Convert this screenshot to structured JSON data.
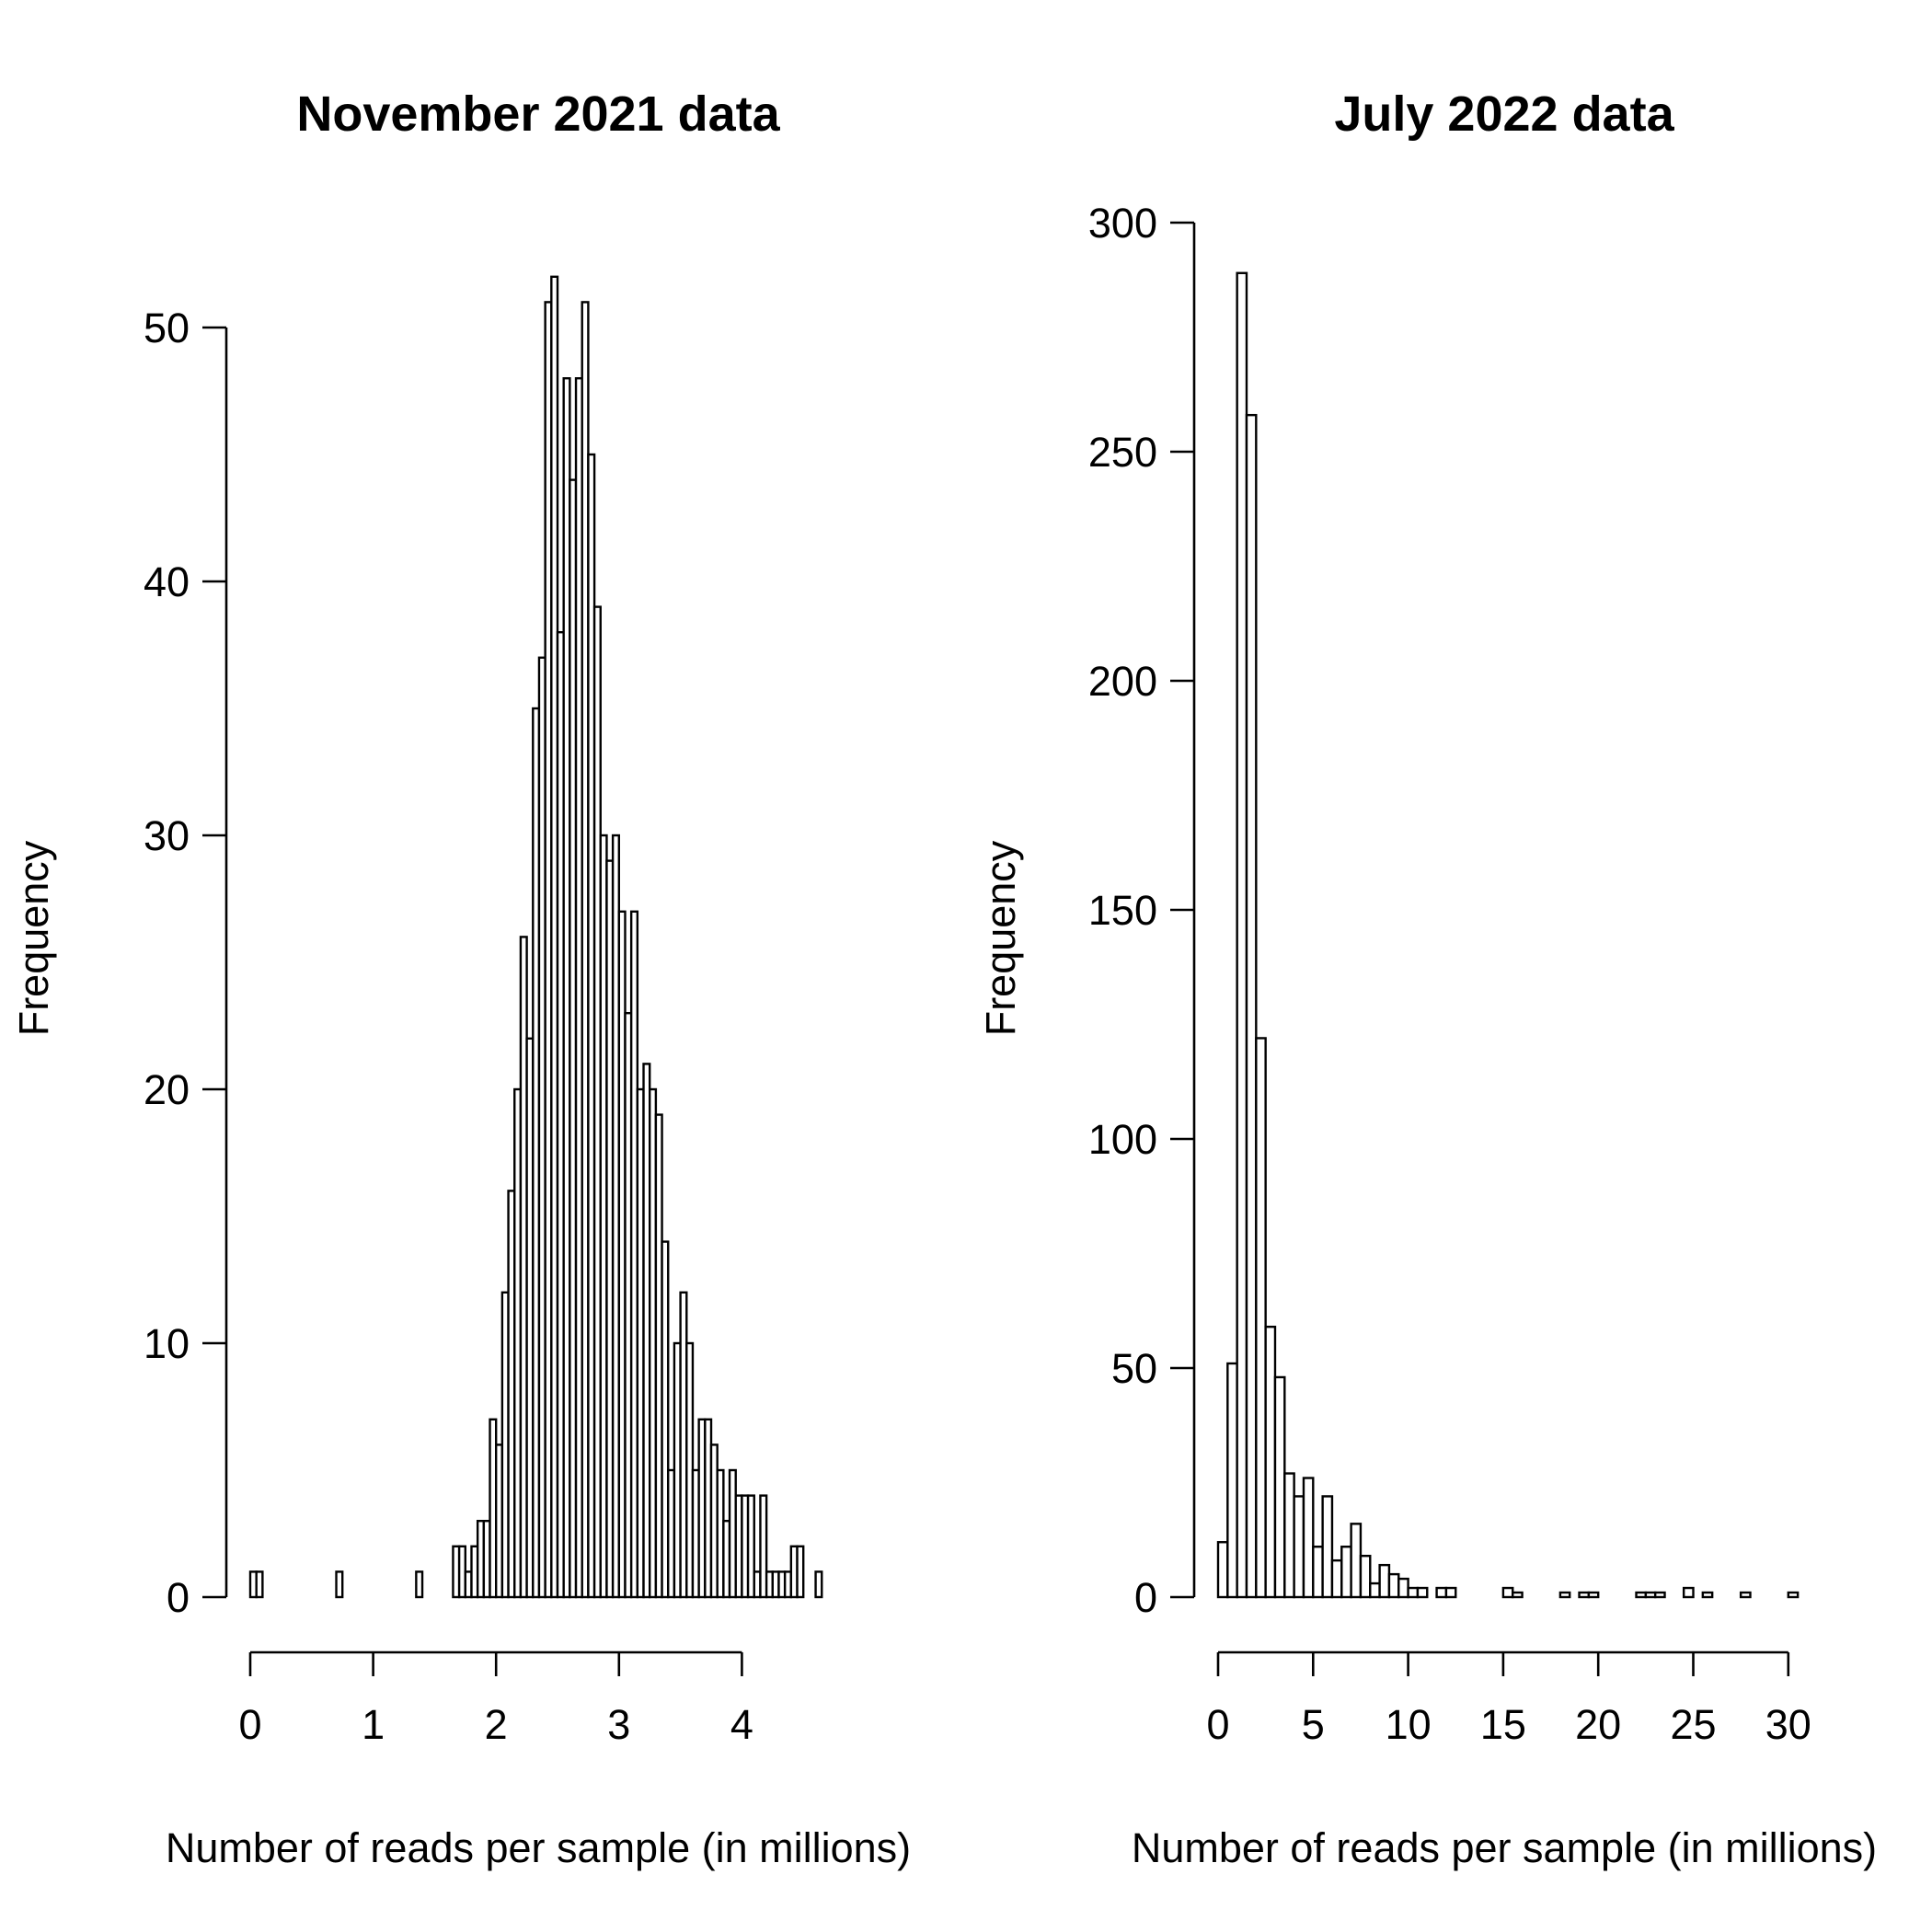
{
  "chart_data": [
    {
      "type": "bar",
      "title": "November 2021 data",
      "xlabel": "Number of reads per sample (in millions)",
      "ylabel": "Frequency",
      "xlim": [
        0,
        4.7
      ],
      "ylim": [
        0,
        50
      ],
      "bin_width": 0.05,
      "x_ticks": [
        "0",
        "1",
        "2",
        "3",
        "4"
      ],
      "y_ticks": [
        "0",
        "10",
        "20",
        "30",
        "40",
        "50"
      ],
      "grid": false,
      "bins_start": 0,
      "values": [
        1,
        1,
        0,
        0,
        0,
        0,
        0,
        0,
        0,
        0,
        0,
        0,
        0,
        0,
        1,
        0,
        0,
        0,
        0,
        0,
        0,
        0,
        0,
        0,
        0,
        0,
        0,
        1,
        0,
        0,
        0,
        0,
        0,
        2,
        2,
        1,
        2,
        3,
        3,
        7,
        6,
        12,
        16,
        20,
        26,
        22,
        35,
        37,
        51,
        52,
        38,
        48,
        44,
        48,
        51,
        45,
        39,
        30,
        29,
        30,
        27,
        23,
        27,
        20,
        21,
        20,
        19,
        14,
        5,
        10,
        12,
        10,
        5,
        7,
        7,
        6,
        5,
        3,
        5,
        4,
        4,
        4,
        1,
        4,
        1,
        1,
        1,
        1,
        2,
        2,
        0,
        0,
        1
      ]
    },
    {
      "type": "bar",
      "title": "July 2022 data",
      "xlabel": "Number of reads per sample (in millions)",
      "ylabel": "Frequency",
      "xlim": [
        0,
        30.5
      ],
      "ylim": [
        0,
        300
      ],
      "bin_width": 0.5,
      "x_ticks": [
        "0",
        "5",
        "10",
        "15",
        "20",
        "25",
        "30"
      ],
      "y_ticks": [
        "0",
        "50",
        "100",
        "150",
        "200",
        "250",
        "300"
      ],
      "grid": false,
      "bins_start": 0,
      "values": [
        12,
        51,
        289,
        258,
        122,
        59,
        48,
        27,
        22,
        26,
        11,
        22,
        8,
        11,
        16,
        9,
        3,
        7,
        5,
        4,
        2,
        2,
        0,
        2,
        2,
        0,
        0,
        0,
        0,
        0,
        2,
        1,
        0,
        0,
        0,
        0,
        1,
        0,
        1,
        1,
        0,
        0,
        0,
        0,
        1,
        1,
        1,
        0,
        0,
        2,
        0,
        1,
        0,
        0,
        0,
        1,
        0,
        0,
        0,
        0,
        1
      ]
    }
  ]
}
